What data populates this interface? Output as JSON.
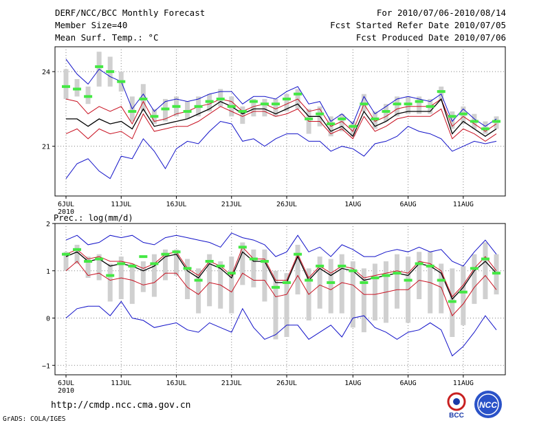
{
  "header": {
    "title": "DERF/NCC/BCC Monthly Forecast",
    "member_size": "Member Size=40",
    "variable": "Mean Surf. Temp.: °C",
    "forecast_period": "For 2010/07/06-2010/08/14",
    "fcst_started": "Fcst Started Refer Date 2010/07/05",
    "fcst_produced": "Fcst Produced Date 2010/07/06"
  },
  "footer": {
    "url": "http://cmdp.ncc.cma.gov.cn",
    "grads": "GrADS: COLA/IGES",
    "logo_bcc": "BCC",
    "logo_ncc": "NCC"
  },
  "colors": {
    "max_line": "#1010c8",
    "min_line": "#1010c8",
    "upper_line": "#c81020",
    "lower_line": "#c81020",
    "mean_line": "#000000",
    "obs_marker": "#44e844",
    "spread_bar": "#d0d0d0",
    "grid": "#808080"
  },
  "chart_data": [
    {
      "type": "line",
      "title": "Mean Surf. Temp.: °C",
      "xlabel": "",
      "ylabel": "",
      "ylim": [
        19.0,
        25.0
      ],
      "yticks": [
        21,
        24
      ],
      "ytick_labels": [
        "21",
        "24"
      ],
      "xtick_days": [
        0,
        5,
        10,
        15,
        20,
        26,
        31,
        36
      ],
      "xtick_labels": [
        "6JUL",
        "11JUL",
        "16JUL",
        "21JUL",
        "26JUL",
        "1AUG",
        "6AUG",
        "11AUG"
      ],
      "year_label": "2010",
      "x_start": "2010-07-06",
      "grid": true,
      "series": [
        {
          "name": "max",
          "color_key": "max_line",
          "values": [
            24.5,
            23.9,
            23.5,
            24.1,
            23.8,
            23.6,
            22.5,
            23.1,
            22.4,
            22.8,
            22.9,
            22.8,
            22.9,
            23.1,
            23.2,
            23.2,
            22.7,
            23.0,
            23.0,
            22.9,
            23.2,
            23.4,
            22.7,
            22.8,
            22.0,
            22.3,
            21.9,
            23.0,
            22.3,
            22.6,
            22.9,
            23.0,
            22.9,
            22.8,
            23.1,
            22.0,
            22.5,
            22.1,
            21.8,
            22.1
          ]
        },
        {
          "name": "upper",
          "color_key": "upper_line",
          "values": [
            22.9,
            22.8,
            22.3,
            22.6,
            22.4,
            22.6,
            21.9,
            22.8,
            22.0,
            22.1,
            22.3,
            22.4,
            22.6,
            22.7,
            22.9,
            22.8,
            22.4,
            22.6,
            22.7,
            22.5,
            22.7,
            22.9,
            22.4,
            22.5,
            21.8,
            22.0,
            21.6,
            22.7,
            22.0,
            22.2,
            22.5,
            22.6,
            22.6,
            22.6,
            22.9,
            21.8,
            22.2,
            21.9,
            21.6,
            21.9
          ]
        },
        {
          "name": "mean",
          "color_key": "mean_line",
          "values": [
            22.1,
            22.1,
            21.8,
            22.1,
            21.9,
            22.0,
            21.7,
            22.5,
            21.8,
            21.9,
            22.0,
            22.1,
            22.3,
            22.5,
            22.8,
            22.6,
            22.3,
            22.5,
            22.5,
            22.3,
            22.5,
            22.7,
            22.2,
            22.2,
            21.6,
            21.8,
            21.4,
            22.4,
            21.8,
            22.0,
            22.3,
            22.4,
            22.4,
            22.4,
            22.9,
            21.5,
            22.0,
            21.7,
            21.4,
            21.7
          ]
        },
        {
          "name": "lower",
          "color_key": "lower_line",
          "values": [
            21.5,
            21.7,
            21.3,
            21.7,
            21.5,
            21.6,
            21.3,
            22.3,
            21.6,
            21.7,
            21.8,
            21.8,
            22.0,
            22.3,
            22.6,
            22.4,
            22.2,
            22.4,
            22.4,
            22.2,
            22.3,
            22.5,
            22.0,
            22.0,
            21.5,
            21.7,
            21.3,
            22.2,
            21.6,
            21.8,
            22.1,
            22.2,
            22.2,
            22.2,
            22.5,
            21.3,
            21.7,
            21.5,
            21.2,
            21.5
          ]
        },
        {
          "name": "min",
          "color_key": "min_line",
          "values": [
            19.7,
            20.3,
            20.5,
            20.0,
            19.7,
            20.6,
            20.5,
            21.3,
            20.8,
            20.1,
            20.9,
            21.2,
            21.1,
            21.6,
            22.0,
            21.9,
            21.2,
            21.3,
            21.0,
            21.3,
            21.5,
            21.5,
            21.2,
            21.2,
            20.8,
            21.0,
            20.9,
            20.6,
            21.1,
            21.2,
            21.4,
            21.8,
            21.6,
            21.5,
            21.3,
            20.8,
            21.0,
            21.2,
            21.1,
            21.2
          ]
        }
      ],
      "obs_markers": [
        23.4,
        23.3,
        23.0,
        24.2,
        24.0,
        23.6,
        22.4,
        22.9,
        22.2,
        22.5,
        22.6,
        22.4,
        22.6,
        22.8,
        22.9,
        22.6,
        22.4,
        22.8,
        22.7,
        22.7,
        22.9,
        23.1,
        22.1,
        22.3,
        21.9,
        22.1,
        21.8,
        22.7,
        22.1,
        22.4,
        22.7,
        22.7,
        22.8,
        22.6,
        23.2,
        22.2,
        22.3,
        22.0,
        21.7,
        22.0
      ],
      "spread_bars": [
        [
          22.9,
          24.1
        ],
        [
          23.0,
          23.7
        ],
        [
          22.7,
          23.4
        ],
        [
          23.4,
          24.8
        ],
        [
          23.4,
          24.6
        ],
        [
          23.2,
          24.0
        ],
        [
          22.0,
          23.0
        ],
        [
          22.4,
          23.5
        ],
        [
          21.9,
          22.5
        ],
        [
          22.0,
          22.9
        ],
        [
          22.2,
          23.0
        ],
        [
          22.1,
          22.8
        ],
        [
          22.2,
          23.0
        ],
        [
          22.4,
          23.1
        ],
        [
          22.6,
          23.3
        ],
        [
          22.2,
          23.0
        ],
        [
          21.9,
          22.6
        ],
        [
          22.2,
          22.9
        ],
        [
          22.2,
          22.9
        ],
        [
          22.2,
          22.9
        ],
        [
          22.4,
          23.1
        ],
        [
          22.5,
          23.3
        ],
        [
          21.5,
          22.5
        ],
        [
          21.8,
          22.6
        ],
        [
          21.4,
          22.2
        ],
        [
          21.6,
          22.3
        ],
        [
          21.4,
          22.0
        ],
        [
          22.4,
          23.1
        ],
        [
          21.7,
          22.4
        ],
        [
          22.0,
          22.7
        ],
        [
          22.2,
          23.0
        ],
        [
          22.3,
          23.0
        ],
        [
          22.3,
          23.0
        ],
        [
          22.3,
          22.9
        ],
        [
          22.8,
          23.4
        ],
        [
          21.7,
          22.4
        ],
        [
          21.9,
          22.6
        ],
        [
          21.7,
          22.3
        ],
        [
          21.5,
          22.0
        ],
        [
          21.7,
          22.2
        ]
      ]
    },
    {
      "type": "line",
      "title": "Prec.: log(mm/d)",
      "xlabel": "",
      "ylabel": "",
      "ylim": [
        -1.2,
        2.0
      ],
      "yticks": [
        -1,
        0,
        1,
        2
      ],
      "ytick_labels": [
        "−1",
        "0",
        "1",
        "2"
      ],
      "xtick_days": [
        0,
        5,
        10,
        15,
        20,
        26,
        31,
        36
      ],
      "xtick_labels": [
        "6JUL",
        "11JUL",
        "16JUL",
        "21JUL",
        "26JUL",
        "1AUG",
        "6AUG",
        "11AUG"
      ],
      "year_label": "2010",
      "x_start": "2010-07-06",
      "grid": true,
      "series": [
        {
          "name": "max",
          "color_key": "max_line",
          "values": [
            1.65,
            1.75,
            1.55,
            1.6,
            1.75,
            1.7,
            1.75,
            1.6,
            1.55,
            1.7,
            1.75,
            1.7,
            1.65,
            1.6,
            1.5,
            1.8,
            1.7,
            1.65,
            1.55,
            1.3,
            1.4,
            1.75,
            1.4,
            1.5,
            1.3,
            1.55,
            1.45,
            1.3,
            1.3,
            1.4,
            1.45,
            1.4,
            1.5,
            1.4,
            1.45,
            1.2,
            1.1,
            1.4,
            1.65,
            1.35
          ]
        },
        {
          "name": "upper",
          "color_key": "upper_line",
          "values": [
            1.35,
            1.45,
            1.25,
            1.3,
            1.2,
            1.2,
            1.15,
            1.05,
            1.15,
            1.35,
            1.4,
            1.05,
            0.9,
            1.2,
            1.1,
            0.9,
            1.5,
            1.25,
            1.25,
            0.8,
            0.8,
            1.35,
            0.85,
            1.1,
            0.95,
            1.1,
            1.05,
            0.85,
            0.9,
            0.95,
            1.0,
            0.95,
            1.2,
            1.15,
            1.0,
            0.45,
            0.7,
            1.05,
            1.3,
            1.0
          ]
        },
        {
          "name": "mean",
          "color_key": "mean_line",
          "values": [
            1.3,
            1.4,
            1.2,
            1.25,
            1.1,
            1.15,
            1.1,
            1.0,
            1.1,
            1.3,
            1.35,
            1.0,
            0.85,
            1.15,
            1.05,
            0.85,
            1.4,
            1.2,
            1.2,
            0.75,
            0.75,
            1.3,
            0.8,
            1.05,
            0.9,
            1.05,
            1.0,
            0.8,
            0.85,
            0.9,
            0.95,
            0.9,
            1.15,
            1.1,
            0.95,
            0.4,
            0.65,
            1.0,
            1.2,
            0.95
          ]
        },
        {
          "name": "lower",
          "color_key": "lower_line",
          "values": [
            1.0,
            1.2,
            0.9,
            0.95,
            0.8,
            0.85,
            0.8,
            0.7,
            0.75,
            0.95,
            0.95,
            0.65,
            0.5,
            0.75,
            0.7,
            0.55,
            0.95,
            0.8,
            0.8,
            0.45,
            0.5,
            0.9,
            0.5,
            0.7,
            0.6,
            0.75,
            0.7,
            0.5,
            0.5,
            0.55,
            0.6,
            0.6,
            0.8,
            0.75,
            0.65,
            0.05,
            0.3,
            0.65,
            0.9,
            0.6
          ]
        },
        {
          "name": "min",
          "color_key": "min_line",
          "values": [
            0.0,
            0.2,
            0.25,
            0.25,
            0.05,
            0.35,
            0.0,
            -0.05,
            -0.2,
            -0.15,
            -0.1,
            -0.25,
            -0.3,
            -0.1,
            -0.2,
            -0.3,
            0.2,
            -0.2,
            -0.45,
            -0.35,
            -0.15,
            -0.15,
            -0.45,
            -0.3,
            -0.15,
            -0.4,
            0.0,
            0.05,
            -0.2,
            -0.3,
            -0.45,
            -0.3,
            -0.25,
            -0.1,
            -0.25,
            -0.8,
            -0.6,
            -0.3,
            0.05,
            -0.25
          ]
        }
      ],
      "obs_markers": [
        1.35,
        1.45,
        1.2,
        1.25,
        0.9,
        1.15,
        1.1,
        1.3,
        1.15,
        1.35,
        1.4,
        1.05,
        0.8,
        1.2,
        1.1,
        0.95,
        1.5,
        1.25,
        1.2,
        0.65,
        0.75,
        1.35,
        0.8,
        1.1,
        0.75,
        1.1,
        1.0,
        0.75,
        0.85,
        0.9,
        0.95,
        0.8,
        1.15,
        1.1,
        0.8,
        0.35,
        0.55,
        1.05,
        1.25,
        0.95
      ],
      "spread_bars": [
        [
          1.0,
          1.4
        ],
        [
          1.15,
          1.55
        ],
        [
          0.85,
          1.3
        ],
        [
          0.8,
          1.35
        ],
        [
          0.35,
          1.15
        ],
        [
          0.4,
          1.3
        ],
        [
          0.3,
          1.15
        ],
        [
          0.55,
          1.2
        ],
        [
          0.45,
          1.35
        ],
        [
          0.8,
          1.45
        ],
        [
          0.9,
          1.45
        ],
        [
          0.4,
          1.25
        ],
        [
          0.1,
          1.05
        ],
        [
          0.25,
          1.35
        ],
        [
          0.2,
          1.2
        ],
        [
          0.1,
          1.3
        ],
        [
          0.7,
          1.6
        ],
        [
          0.65,
          1.45
        ],
        [
          0.35,
          1.45
        ],
        [
          -0.45,
          1.0
        ],
        [
          -0.4,
          0.95
        ],
        [
          0.5,
          1.55
        ],
        [
          -0.05,
          1.05
        ],
        [
          0.2,
          1.3
        ],
        [
          0.1,
          1.25
        ],
        [
          0.1,
          1.35
        ],
        [
          -0.2,
          1.2
        ],
        [
          -0.3,
          1.05
        ],
        [
          -0.05,
          1.15
        ],
        [
          -0.1,
          1.2
        ],
        [
          0.2,
          1.35
        ],
        [
          -0.1,
          1.3
        ],
        [
          0.4,
          1.4
        ],
        [
          0.1,
          1.4
        ],
        [
          0.1,
          1.15
        ],
        [
          -0.4,
          1.05
        ],
        [
          -0.15,
          1.1
        ],
        [
          0.3,
          1.35
        ],
        [
          0.4,
          1.6
        ],
        [
          0.5,
          1.35
        ]
      ]
    }
  ]
}
